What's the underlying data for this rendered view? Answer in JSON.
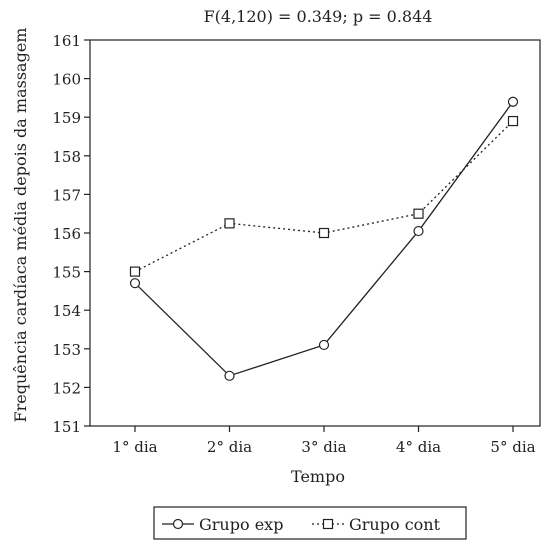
{
  "chart_data": {
    "type": "line",
    "title": "F(4,120) = 0.349; p = 0.844",
    "xlabel": "Tempo",
    "ylabel": "Frequência cardíaca média depois da massagem",
    "categories": [
      "1° dia",
      "2° dia",
      "3° dia",
      "4° dia",
      "5° dia"
    ],
    "ylim": [
      151,
      161
    ],
    "yticks": [
      151,
      152,
      153,
      154,
      155,
      156,
      157,
      158,
      159,
      160,
      161
    ],
    "grid": false,
    "legend_position": "bottom",
    "series": [
      {
        "name": "Grupo exp",
        "values": [
          154.7,
          152.3,
          153.1,
          156.05,
          159.4
        ],
        "marker": "circle",
        "line_style": "solid",
        "color": "#222222"
      },
      {
        "name": "Grupo cont",
        "values": [
          155.0,
          156.25,
          156.0,
          156.5,
          158.9
        ],
        "marker": "square",
        "line_style": "dotted",
        "color": "#222222"
      }
    ]
  }
}
